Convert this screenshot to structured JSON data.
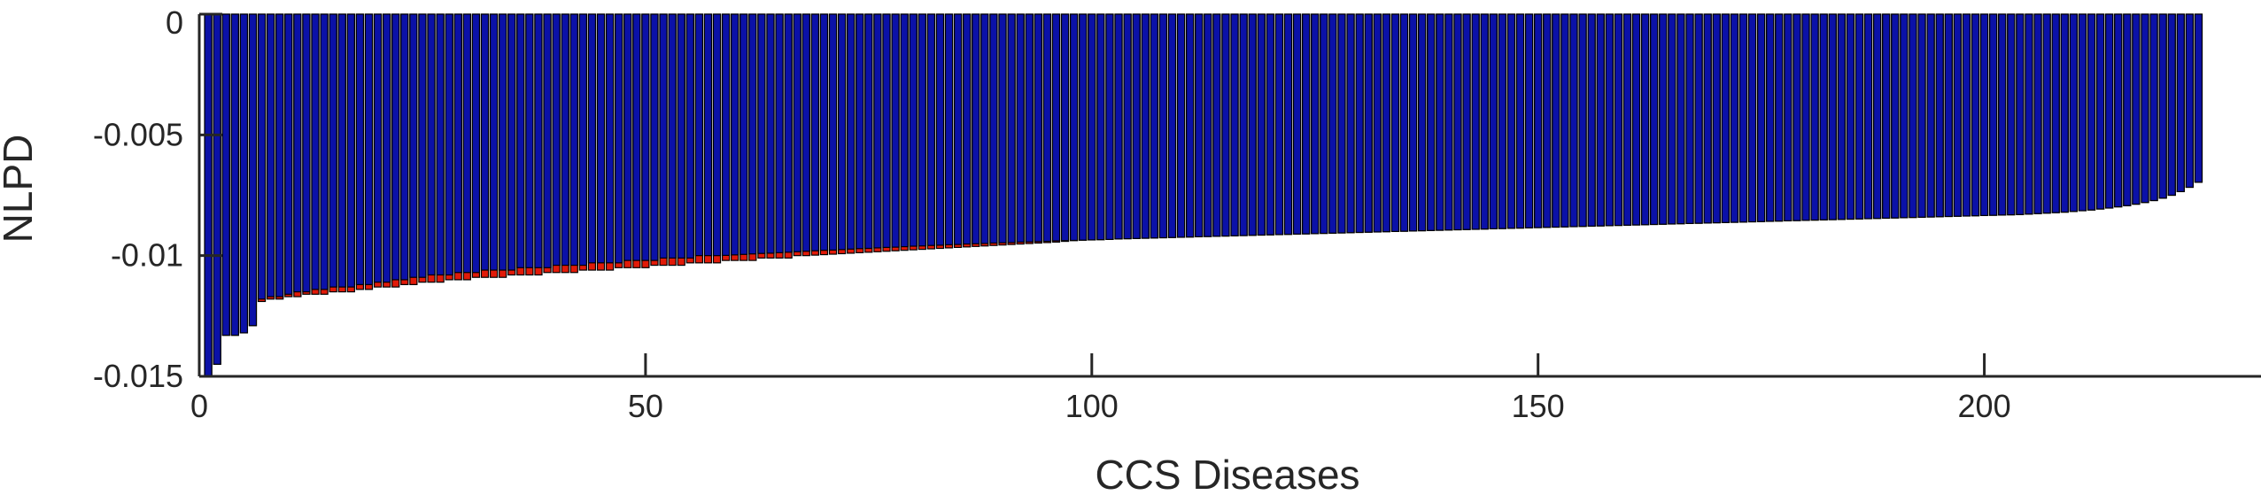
{
  "chart_data": {
    "type": "bar",
    "xlabel": "CCS Diseases",
    "ylabel": "NLPD",
    "xlim": [
      0,
      231
    ],
    "ylim": [
      -0.015,
      0
    ],
    "xticks": [
      0,
      50,
      100,
      150,
      200
    ],
    "xtick_labels": [
      "0",
      "50",
      "100",
      "150",
      "200"
    ],
    "yticks": [
      0,
      -0.005,
      -0.01,
      -0.015
    ],
    "ytick_labels": [
      "0",
      "-0.005",
      "-0.01",
      "-0.015"
    ],
    "grid": false,
    "legend": "none",
    "categories_count": 231,
    "colors": {
      "blue": "#0b11a8",
      "red": "#e11a08",
      "edge": "#000000",
      "axis": "#262626"
    },
    "series": [
      {
        "color": "blue",
        "values": [
          -0.015,
          -0.0145,
          -0.0133,
          -0.0133,
          -0.0132,
          -0.0129,
          -0.0118,
          -0.0117,
          -0.0117,
          -0.0116,
          -0.0115,
          -0.0115,
          -0.0114,
          -0.0114,
          -0.0113,
          -0.0113,
          -0.0113,
          -0.0112,
          -0.0112,
          -0.0111,
          -0.0111,
          -0.011,
          -0.011,
          -0.0109,
          -0.0109,
          -0.0108,
          -0.0108,
          -0.0108,
          -0.0107,
          -0.0107,
          -0.0107,
          -0.0106,
          -0.0106,
          -0.0106,
          -0.0106,
          -0.0105,
          -0.0105,
          -0.0105,
          -0.0105,
          -0.0104,
          -0.0104,
          -0.0104,
          -0.0104,
          -0.0103,
          -0.0103,
          -0.0103,
          -0.0103,
          -0.0102,
          -0.0102,
          -0.0102,
          -0.0102,
          -0.0101,
          -0.0101,
          -0.0101,
          -0.0101,
          -0.01,
          -0.01,
          -0.01,
          -0.00999,
          -0.00997,
          -0.00995,
          -0.00993,
          -0.00991,
          -0.0099,
          -0.00988,
          -0.00986,
          -0.00984,
          -0.00982,
          -0.0098,
          -0.00978,
          -0.00977,
          -0.00975,
          -0.00973,
          -0.00971,
          -0.0097,
          -0.00968,
          -0.00966,
          -0.00965,
          -0.00963,
          -0.00961,
          -0.0096,
          -0.00958,
          -0.00957,
          -0.00955,
          -0.00954,
          -0.00952,
          -0.00951,
          -0.0095,
          -0.00948,
          -0.00947,
          -0.00946,
          -0.00944,
          -0.00943,
          -0.00942,
          -0.00941,
          -0.00939,
          -0.00938,
          -0.00937,
          -0.00936,
          -0.00935,
          -0.00934,
          -0.00933,
          -0.00931,
          -0.0093,
          -0.00929,
          -0.00928,
          -0.00927,
          -0.00926,
          -0.00925,
          -0.00924,
          -0.00923,
          -0.00922,
          -0.00921,
          -0.0092,
          -0.00919,
          -0.00918,
          -0.00917,
          -0.00916,
          -0.00915,
          -0.00914,
          -0.00913,
          -0.00912,
          -0.00911,
          -0.0091,
          -0.00909,
          -0.00908,
          -0.00907,
          -0.00906,
          -0.00905,
          -0.00904,
          -0.00903,
          -0.00902,
          -0.00901,
          -0.009,
          -0.00899,
          -0.00898,
          -0.00897,
          -0.00896,
          -0.00895,
          -0.00894,
          -0.00893,
          -0.00892,
          -0.00891,
          -0.0089,
          -0.00889,
          -0.00888,
          -0.00887,
          -0.00886,
          -0.00885,
          -0.00884,
          -0.00883,
          -0.00882,
          -0.00881,
          -0.0088,
          -0.00879,
          -0.00878,
          -0.00877,
          -0.00876,
          -0.00875,
          -0.00874,
          -0.00873,
          -0.00872,
          -0.00871,
          -0.0087,
          -0.00869,
          -0.00868,
          -0.00867,
          -0.00866,
          -0.00865,
          -0.00864,
          -0.00863,
          -0.00862,
          -0.00861,
          -0.0086,
          -0.00859,
          -0.00858,
          -0.00857,
          -0.00856,
          -0.00855,
          -0.00854,
          -0.00853,
          -0.00852,
          -0.00851,
          -0.0085,
          -0.00849,
          -0.00848,
          -0.00847,
          -0.00846,
          -0.00845,
          -0.00844,
          -0.00843,
          -0.00842,
          -0.00841,
          -0.0084,
          -0.00839,
          -0.00838,
          -0.00837,
          -0.00836,
          -0.00835,
          -0.00834,
          -0.00833,
          -0.00832,
          -0.00831,
          -0.0083,
          -0.00828,
          -0.00826,
          -0.00824,
          -0.00822,
          -0.0082,
          -0.00817,
          -0.00814,
          -0.00811,
          -0.00807,
          -0.00803,
          -0.00798,
          -0.00793,
          -0.00787,
          -0.0078,
          -0.00772,
          -0.00762,
          -0.0075,
          -0.00735,
          -0.00717,
          -0.00696
        ]
      },
      {
        "color": "red",
        "values": [
          -0.015,
          -0.0145,
          -0.0133,
          -0.0133,
          -0.0132,
          -0.0129,
          -0.0119,
          -0.0118,
          -0.0118,
          -0.0117,
          -0.0117,
          -0.0116,
          -0.0116,
          -0.0116,
          -0.0115,
          -0.0115,
          -0.0115,
          -0.0114,
          -0.0114,
          -0.0113,
          -0.0113,
          -0.0113,
          -0.0112,
          -0.0112,
          -0.0111,
          -0.0111,
          -0.0111,
          -0.011,
          -0.011,
          -0.011,
          -0.0109,
          -0.0109,
          -0.0109,
          -0.0109,
          -0.0108,
          -0.0108,
          -0.0108,
          -0.0108,
          -0.0107,
          -0.0107,
          -0.0107,
          -0.0107,
          -0.0106,
          -0.0106,
          -0.0106,
          -0.0106,
          -0.0105,
          -0.0105,
          -0.0105,
          -0.0105,
          -0.0104,
          -0.0104,
          -0.0104,
          -0.0104,
          -0.0103,
          -0.0103,
          -0.0103,
          -0.0103,
          -0.0102,
          -0.0102,
          -0.0102,
          -0.0102,
          -0.0101,
          -0.0101,
          -0.0101,
          -0.0101,
          -0.01,
          -0.01,
          -0.00998,
          -0.00996,
          -0.00994,
          -0.00992,
          -0.0099,
          -0.00988,
          -0.00986,
          -0.00984,
          -0.00982,
          -0.0098,
          -0.00978,
          -0.00976,
          -0.00974,
          -0.00972,
          -0.0097,
          -0.00968,
          -0.00966,
          -0.00964,
          -0.00962,
          -0.0096,
          -0.00958,
          -0.00956,
          -0.00954,
          -0.00952,
          -0.0095,
          -0.00948,
          -0.00946,
          -0.00944,
          -0.00941,
          -0.00938,
          -0.00936,
          -0.00935,
          -0.00934,
          -0.00933,
          -0.00931,
          -0.0093,
          -0.00929,
          -0.00928,
          -0.00927,
          -0.00926,
          -0.00925,
          -0.00924,
          -0.00923,
          -0.00922,
          -0.00921,
          -0.0092,
          -0.00919,
          -0.00918,
          -0.00917,
          -0.00916,
          -0.00915,
          -0.00914,
          -0.00913,
          -0.00912,
          -0.00911,
          -0.0091,
          -0.00909,
          -0.00908,
          -0.00907,
          -0.00906,
          -0.00905,
          -0.00904,
          -0.00903,
          -0.00902,
          -0.00901,
          -0.009,
          -0.00899,
          -0.00898,
          -0.00897,
          -0.00896,
          -0.00895,
          -0.00894,
          -0.00893,
          -0.00892,
          -0.00891,
          -0.0089,
          -0.00889,
          -0.00888,
          -0.00887,
          -0.00886,
          -0.00885,
          -0.00884,
          -0.00883,
          -0.00882,
          -0.00881,
          -0.0088,
          -0.00879,
          -0.00878,
          -0.00877,
          -0.00876,
          -0.00875,
          -0.00874,
          -0.00873,
          -0.00872,
          -0.00871,
          -0.0087,
          -0.00869,
          -0.00868,
          -0.00867,
          -0.00866,
          -0.00865,
          -0.00864,
          -0.00863,
          -0.00862,
          -0.00861,
          -0.0086,
          -0.00859,
          -0.00858,
          -0.00857,
          -0.00856,
          -0.00855,
          -0.00854,
          -0.00853,
          -0.00852,
          -0.00851,
          -0.0085,
          -0.00849,
          -0.00848,
          -0.00847,
          -0.00846,
          -0.00845,
          -0.00844,
          -0.00843,
          -0.00842,
          -0.00841,
          -0.0084,
          -0.00839,
          -0.00838,
          -0.00837,
          -0.00836,
          -0.00835,
          -0.00834,
          -0.00833,
          -0.00832,
          -0.00831,
          -0.0083,
          -0.00828,
          -0.00826,
          -0.00824,
          -0.00822,
          -0.0082,
          -0.00817,
          -0.00814,
          -0.00811,
          -0.00807,
          -0.00803,
          -0.00798,
          -0.00793,
          -0.00787,
          -0.0078,
          -0.00772,
          -0.00762,
          -0.0075,
          -0.00735,
          -0.00717,
          -0.00696
        ]
      }
    ]
  }
}
